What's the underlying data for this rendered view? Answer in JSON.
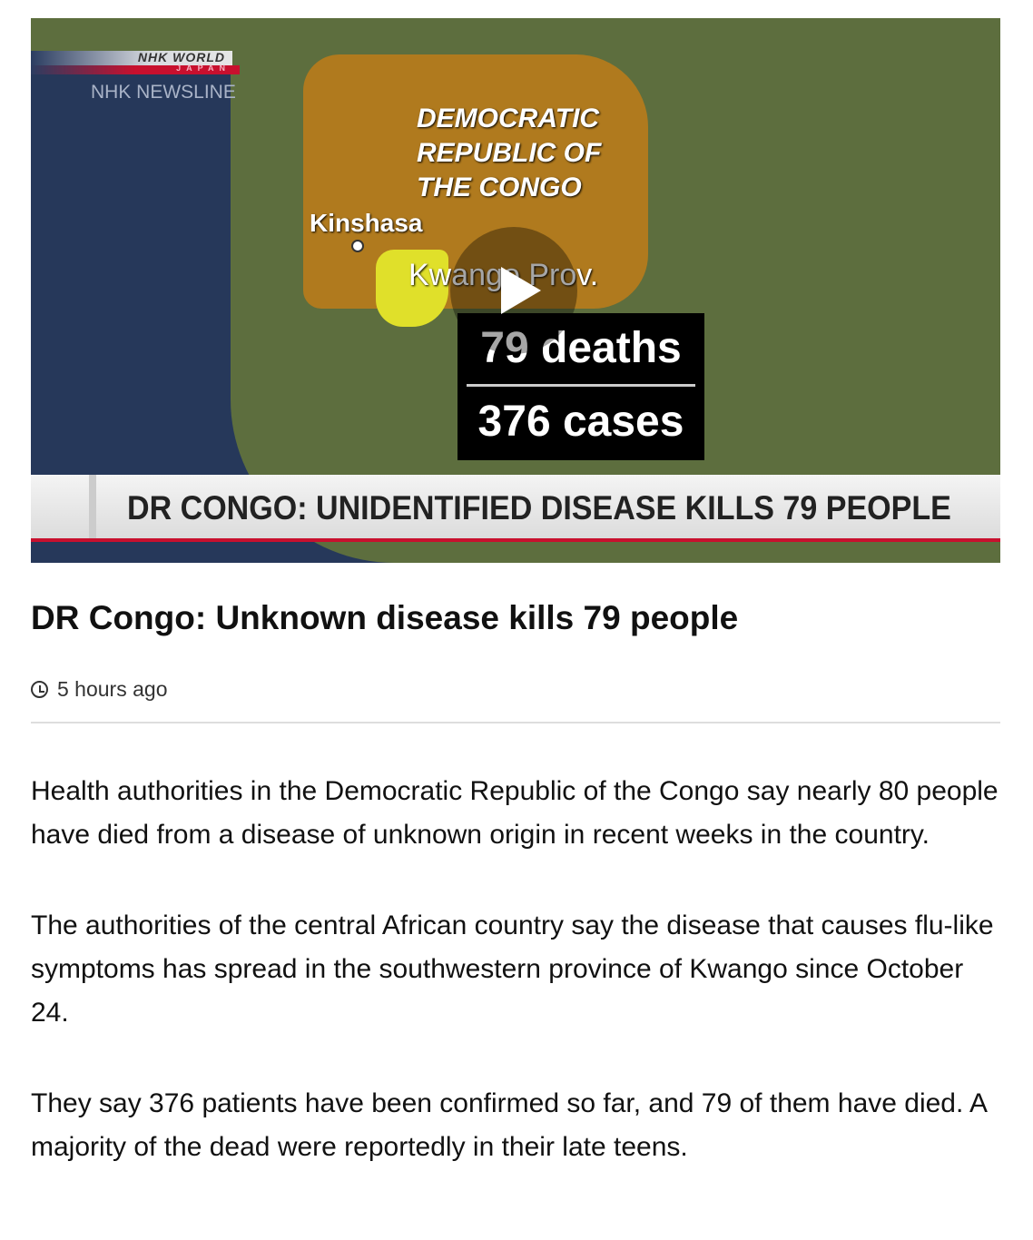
{
  "video": {
    "logo_text": "NHK WORLD",
    "logo_sub": "JAPAN",
    "program": "NHK NEWSLINE",
    "map_labels": {
      "country": [
        "DEMOCRATIC",
        "REPUBLIC OF",
        "THE CONGO"
      ],
      "capital": "Kinshasa",
      "province": "Kwango Prov."
    },
    "stats": {
      "deaths": "79 deaths",
      "cases": "376 cases"
    },
    "ticker": "DR CONGO: UNIDENTIFIED DISEASE KILLS 79 PEOPLE",
    "play_icon": "play-icon"
  },
  "article": {
    "title": "DR Congo: Unknown disease kills 79 people",
    "timestamp": "5 hours ago",
    "paragraphs": [
      "Health authorities in the Democratic Republic of the Congo say nearly 80 people have died from a disease of unknown origin in recent weeks in the country.",
      "The authorities of the central African country say the disease that causes flu-like symptoms has spread in the southwestern province of Kwango since October 24.",
      "They say 376 patients have been confirmed so far, and 79 of them have died. A majority of the dead were reportedly in their late teens."
    ]
  }
}
